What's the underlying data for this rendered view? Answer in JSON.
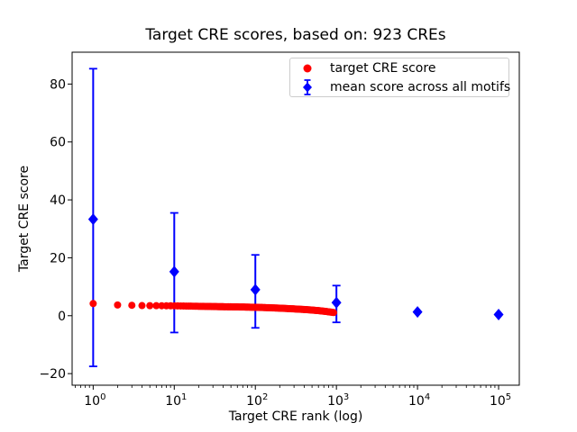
{
  "figure": {
    "background": "#ffffff"
  },
  "chart_data": {
    "type": "scatter",
    "title": "Target CRE scores, based on: 923 CREs",
    "xlabel": "Target CRE rank (log)",
    "ylabel": "Target CRE score",
    "x_scale": "log",
    "xlim": [
      0.55,
      180000
    ],
    "ylim": [
      -24,
      91
    ],
    "x_tick_exponents": [
      0,
      1,
      2,
      3,
      4,
      5
    ],
    "y_ticks": [
      -20,
      0,
      20,
      40,
      60,
      80
    ],
    "grid": false,
    "colors": {
      "target": "#ff0000",
      "mean": "#0000ff",
      "axis": "#000000",
      "legend_border": "#cccccc"
    },
    "legend": {
      "position": "upper right",
      "entries": [
        "target CRE score",
        "mean score across all motifs"
      ]
    },
    "series": [
      {
        "name": "target CRE score",
        "marker": "circle",
        "color": "#ff0000",
        "n_points": 923,
        "anchors": [
          [
            1,
            4.2
          ],
          [
            2,
            3.7
          ],
          [
            3,
            3.6
          ],
          [
            4,
            3.5
          ],
          [
            6,
            3.45
          ],
          [
            10,
            3.4
          ],
          [
            20,
            3.25
          ],
          [
            40,
            3.1
          ],
          [
            70,
            3.0
          ],
          [
            100,
            2.9
          ],
          [
            150,
            2.75
          ],
          [
            200,
            2.6
          ],
          [
            300,
            2.35
          ],
          [
            450,
            2.05
          ],
          [
            600,
            1.75
          ],
          [
            750,
            1.45
          ],
          [
            923,
            1.1
          ]
        ]
      },
      {
        "name": "mean score across all motifs",
        "marker": "diamond",
        "color": "#0000ff",
        "points": [
          {
            "rank": 1,
            "mean": 33.3,
            "lo": -17.5,
            "hi": 85.3
          },
          {
            "rank": 10,
            "mean": 15.2,
            "lo": -5.8,
            "hi": 35.5
          },
          {
            "rank": 100,
            "mean": 9.0,
            "lo": -4.2,
            "hi": 21.0
          },
          {
            "rank": 1000,
            "mean": 4.5,
            "lo": -2.3,
            "hi": 10.4
          },
          {
            "rank": 10000,
            "mean": 1.3,
            "lo": null,
            "hi": null
          },
          {
            "rank": 100000,
            "mean": 0.4,
            "lo": null,
            "hi": null
          }
        ]
      }
    ]
  }
}
